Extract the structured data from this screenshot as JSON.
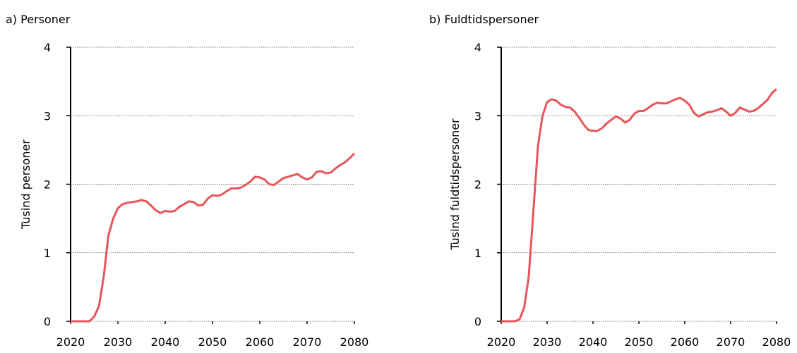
{
  "chart_data": [
    {
      "type": "line",
      "title": "a) Personer",
      "y_label": "Tusind personer",
      "x": [
        2020,
        2021,
        2022,
        2023,
        2024,
        2025,
        2026,
        2027,
        2028,
        2029,
        2030,
        2031,
        2032,
        2033,
        2034,
        2035,
        2036,
        2037,
        2038,
        2039,
        2040,
        2041,
        2042,
        2043,
        2044,
        2045,
        2046,
        2047,
        2048,
        2049,
        2050,
        2051,
        2052,
        2053,
        2054,
        2055,
        2056,
        2057,
        2058,
        2059,
        2060,
        2061,
        2062,
        2063,
        2064,
        2065,
        2066,
        2067,
        2068,
        2069,
        2070,
        2071,
        2072,
        2073,
        2074,
        2075,
        2076,
        2077,
        2078,
        2079,
        2080
      ],
      "series": [
        {
          "color": "#e8555a",
          "values": [
            0,
            0,
            0,
            0,
            0,
            0.07,
            0.22,
            0.65,
            1.25,
            1.5,
            1.65,
            1.71,
            1.73,
            1.74,
            1.75,
            1.77,
            1.75,
            1.69,
            1.62,
            1.58,
            1.61,
            1.6,
            1.61,
            1.67,
            1.71,
            1.75,
            1.74,
            1.69,
            1.7,
            1.79,
            1.84,
            1.83,
            1.85,
            1.9,
            1.94,
            1.94,
            1.95,
            1.99,
            2.04,
            2.11,
            2.1,
            2.07,
            2.0,
            1.99,
            2.04,
            2.09,
            2.11,
            2.13,
            2.15,
            2.1,
            2.07,
            2.1,
            2.18,
            2.19,
            2.16,
            2.17,
            2.23,
            2.28,
            2.32,
            2.38,
            2.45
          ]
        }
      ],
      "xlim": [
        2020,
        2080
      ],
      "xticks": [
        2020,
        2030,
        2040,
        2050,
        2060,
        2070,
        2080
      ],
      "ylim": [
        0,
        4
      ],
      "yticks": [
        0,
        1,
        2,
        3,
        4
      ],
      "grid": true
    },
    {
      "type": "line",
      "title": "b) Fuldtidspersoner",
      "y_label": "Tusind fuldtidspersoner",
      "x": [
        2020,
        2021,
        2022,
        2023,
        2024,
        2025,
        2026,
        2027,
        2028,
        2029,
        2030,
        2031,
        2032,
        2033,
        2034,
        2035,
        2036,
        2037,
        2038,
        2039,
        2040,
        2041,
        2042,
        2043,
        2044,
        2045,
        2046,
        2047,
        2048,
        2049,
        2050,
        2051,
        2052,
        2053,
        2054,
        2055,
        2056,
        2057,
        2058,
        2059,
        2060,
        2061,
        2062,
        2063,
        2064,
        2065,
        2066,
        2067,
        2068,
        2069,
        2070,
        2071,
        2072,
        2073,
        2074,
        2075,
        2076,
        2077,
        2078,
        2079,
        2080
      ],
      "series": [
        {
          "color": "#e8555a",
          "values": [
            0,
            0,
            0,
            0,
            0.03,
            0.2,
            0.65,
            1.6,
            2.55,
            3.0,
            3.2,
            3.24,
            3.22,
            3.16,
            3.13,
            3.12,
            3.06,
            2.97,
            2.87,
            2.79,
            2.78,
            2.78,
            2.82,
            2.89,
            2.94,
            2.99,
            2.96,
            2.9,
            2.94,
            3.03,
            3.07,
            3.07,
            3.11,
            3.16,
            3.19,
            3.18,
            3.18,
            3.21,
            3.24,
            3.26,
            3.22,
            3.16,
            3.04,
            2.99,
            3.02,
            3.05,
            3.06,
            3.08,
            3.11,
            3.06,
            3.0,
            3.04,
            3.12,
            3.09,
            3.06,
            3.07,
            3.11,
            3.17,
            3.23,
            3.33,
            3.39
          ]
        }
      ],
      "xlim": [
        2020,
        2080
      ],
      "xticks": [
        2020,
        2030,
        2040,
        2050,
        2060,
        2070,
        2080
      ],
      "ylim": [
        0,
        4
      ],
      "yticks": [
        0,
        1,
        2,
        3,
        4
      ],
      "grid": true
    }
  ]
}
